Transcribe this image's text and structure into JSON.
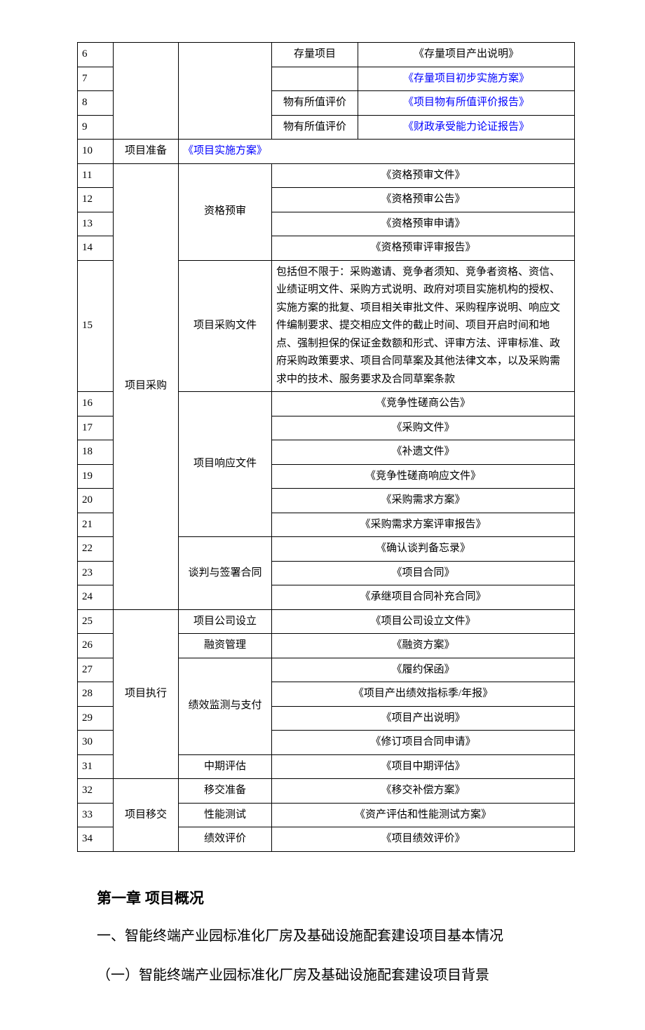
{
  "table": {
    "rows": [
      {
        "num": "6",
        "phase": "",
        "sub": "",
        "extra": "存量项目",
        "doc": "《存量项目产出说明》",
        "link": false,
        "doc_center": true,
        "has_extra": true
      },
      {
        "num": "7",
        "phase": "",
        "sub": "",
        "extra": "",
        "doc": "《存量项目初步实施方案》",
        "link": true,
        "doc_center": true,
        "has_extra": true
      },
      {
        "num": "8",
        "phase": "",
        "sub": "",
        "extra": "物有所值评价",
        "doc": "《项目物有所值评价报告》",
        "link": true,
        "doc_center": true,
        "has_extra": true
      },
      {
        "num": "9",
        "phase": "",
        "sub": "",
        "extra": "物有所值评价",
        "doc": "《财政承受能力论证报告》",
        "link": true,
        "doc_center": true,
        "has_extra": true
      },
      {
        "num": "10",
        "phase": "项目准备",
        "sub": "",
        "extra": "",
        "doc": "《项目实施方案》",
        "link": true,
        "doc_center": false,
        "has_extra": false,
        "sub_colspan": 3,
        "phase_rowspan": 1
      },
      {
        "num": "11",
        "phase": "项目采购",
        "sub": "资格预审",
        "extra": "",
        "doc": "《资格预审文件》",
        "link": false,
        "doc_center": true,
        "has_extra": false,
        "phase_rowspan": 14,
        "sub_rowspan": 4
      },
      {
        "num": "12",
        "phase": "",
        "sub": "",
        "extra": "",
        "doc": "《资格预审公告》",
        "link": false,
        "doc_center": true,
        "has_extra": false
      },
      {
        "num": "13",
        "phase": "",
        "sub": "",
        "extra": "",
        "doc": "《资格预审申请》",
        "link": false,
        "doc_center": true,
        "has_extra": false
      },
      {
        "num": "14",
        "phase": "",
        "sub": "",
        "extra": "",
        "doc": "《资格预审评审报告》",
        "link": false,
        "doc_center": true,
        "has_extra": false
      },
      {
        "num": "15",
        "phase": "",
        "sub": "项目采购文件",
        "extra": "",
        "doc": "包括但不限于：采购邀请、竞争者须知、竞争者资格、资信、业绩证明文件、采购方式说明、政府对项目实施机构的授权、实施方案的批复、项目相关审批文件、采购程序说明、响应文件编制要求、提交相应文件的截止时间、项目开启时间和地点、强制担保的保证金数额和形式、评审方法、评审标准、政府采购政策要求、项目合同草案及其他法律文本，以及采购需求中的技术、服务要求及合同草案条款",
        "link": false,
        "doc_center": false,
        "has_extra": false,
        "sub_rowspan": 1
      },
      {
        "num": "16",
        "phase": "",
        "sub": "项目响应文件",
        "extra": "",
        "doc": "《竞争性磋商公告》",
        "link": false,
        "doc_center": true,
        "has_extra": false,
        "sub_rowspan": 6
      },
      {
        "num": "17",
        "phase": "",
        "sub": "",
        "extra": "",
        "doc": "《采购文件》",
        "link": false,
        "doc_center": true,
        "has_extra": false
      },
      {
        "num": "18",
        "phase": "",
        "sub": "",
        "extra": "",
        "doc": "《补遗文件》",
        "link": false,
        "doc_center": true,
        "has_extra": false
      },
      {
        "num": "19",
        "phase": "",
        "sub": "",
        "extra": "",
        "doc": "《竞争性磋商响应文件》",
        "link": false,
        "doc_center": true,
        "has_extra": false
      },
      {
        "num": "20",
        "phase": "",
        "sub": "",
        "extra": "",
        "doc": "《采购需求方案》",
        "link": false,
        "doc_center": true,
        "has_extra": false
      },
      {
        "num": "21",
        "phase": "",
        "sub": "",
        "extra": "",
        "doc": "《采购需求方案评审报告》",
        "link": false,
        "doc_center": true,
        "has_extra": false
      },
      {
        "num": "22",
        "phase": "",
        "sub": "谈判与签署合同",
        "extra": "",
        "doc": "《确认谈判备忘录》",
        "link": false,
        "doc_center": true,
        "has_extra": false,
        "sub_rowspan": 3
      },
      {
        "num": "23",
        "phase": "",
        "sub": "",
        "extra": "",
        "doc": "《项目合同》",
        "link": false,
        "doc_center": true,
        "has_extra": false
      },
      {
        "num": "24",
        "phase": "",
        "sub": "",
        "extra": "",
        "doc": "《承继项目合同补充合同》",
        "link": false,
        "doc_center": true,
        "has_extra": false
      },
      {
        "num": "25",
        "phase": "项目执行",
        "sub": "项目公司设立",
        "extra": "",
        "doc": "《项目公司设立文件》",
        "link": false,
        "doc_center": true,
        "has_extra": false,
        "phase_rowspan": 7,
        "sub_rowspan": 1
      },
      {
        "num": "26",
        "phase": "",
        "sub": "融资管理",
        "extra": "",
        "doc": "《融资方案》",
        "link": false,
        "doc_center": true,
        "has_extra": false,
        "sub_rowspan": 1
      },
      {
        "num": "27",
        "phase": "",
        "sub": "绩效监测与支付",
        "extra": "",
        "doc": "《履约保函》",
        "link": false,
        "doc_center": true,
        "has_extra": false,
        "sub_rowspan": 4
      },
      {
        "num": "28",
        "phase": "",
        "sub": "",
        "extra": "",
        "doc": "《项目产出绩效指标季/年报》",
        "link": false,
        "doc_center": true,
        "has_extra": false
      },
      {
        "num": "29",
        "phase": "",
        "sub": "",
        "extra": "",
        "doc": "《项目产出说明》",
        "link": false,
        "doc_center": true,
        "has_extra": false
      },
      {
        "num": "30",
        "phase": "",
        "sub": "",
        "extra": "",
        "doc": "《修订项目合同申请》",
        "link": false,
        "doc_center": true,
        "has_extra": false
      },
      {
        "num": "31",
        "phase": "",
        "sub": "中期评估",
        "extra": "",
        "doc": "《项目中期评估》",
        "link": false,
        "doc_center": true,
        "has_extra": false,
        "sub_rowspan": 1
      },
      {
        "num": "32",
        "phase": "项目移交",
        "sub": "移交准备",
        "extra": "",
        "doc": "《移交补偿方案》",
        "link": false,
        "doc_center": true,
        "has_extra": false,
        "phase_rowspan": 3,
        "sub_rowspan": 1
      },
      {
        "num": "33",
        "phase": "",
        "sub": "性能测试",
        "extra": "",
        "doc": "《资产评估和性能测试方案》",
        "link": false,
        "doc_center": true,
        "has_extra": false,
        "sub_rowspan": 1
      },
      {
        "num": "34",
        "phase": "",
        "sub": "绩效评价",
        "extra": "",
        "doc": "《项目绩效评价》",
        "link": false,
        "doc_center": true,
        "has_extra": false,
        "sub_rowspan": 1
      }
    ]
  },
  "section": {
    "chapter": "第一章 项目概况",
    "h1": "一、智能终端产业园标准化厂房及基础设施配套建设项目基本情况",
    "h2": "（一）智能终端产业园标准化厂房及基础设施配套建设项目背景"
  },
  "colors": {
    "link": "#0000ff",
    "text": "#000000",
    "bg": "#ffffff",
    "border": "#000000"
  }
}
